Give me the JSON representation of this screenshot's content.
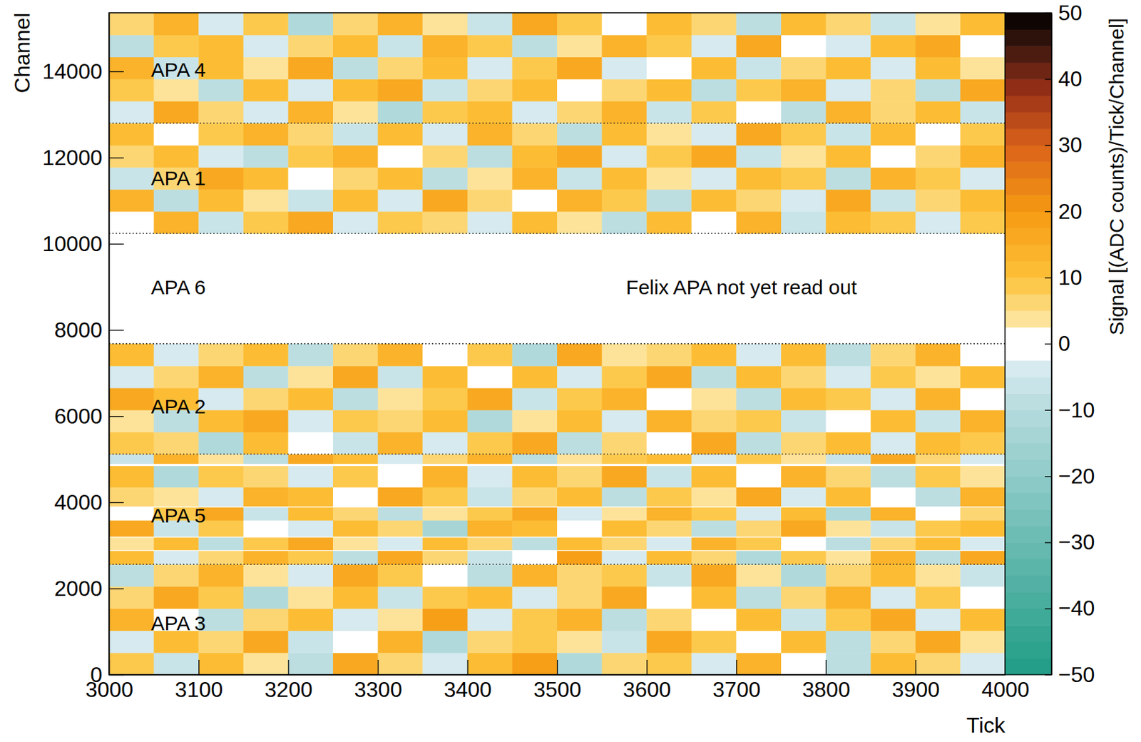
{
  "chart_data": {
    "type": "heatmap",
    "x_label": "Tick",
    "y_label": "Channel",
    "xlim": [
      3000,
      4000
    ],
    "ylim": [
      0,
      15360
    ],
    "xticks": [
      3000,
      3100,
      3200,
      3300,
      3400,
      3500,
      3600,
      3700,
      3800,
      3900,
      4000
    ],
    "yticks": [
      0,
      2000,
      4000,
      6000,
      8000,
      10000,
      12000,
      14000
    ],
    "grid": false,
    "x_edges": [
      3000,
      3050,
      3100,
      3150,
      3200,
      3250,
      3300,
      3350,
      3400,
      3450,
      3500,
      3550,
      3600,
      3650,
      3700,
      3750,
      3800,
      3850,
      3900,
      3950,
      4000
    ],
    "y_edges": [
      0,
      512,
      1024,
      1536,
      2048,
      2560,
      2880,
      2896,
      3190,
      3210,
      3584,
      3890,
      3910,
      4352,
      4850,
      4900,
      5120,
      5632,
      6144,
      6656,
      7168,
      7680,
      10240,
      10752,
      11264,
      11776,
      12288,
      12800,
      13312,
      13824,
      14336,
      14848,
      15360
    ],
    "cells": [
      [
        8,
        -6,
        12,
        3,
        -9,
        15,
        6,
        -3,
        10,
        18,
        -12,
        5,
        9,
        -4,
        14,
        2,
        -8,
        11,
        7,
        -5
      ],
      [
        -4,
        10,
        5,
        16,
        -7,
        2,
        13,
        -11,
        6,
        9,
        4,
        -6,
        17,
        8,
        -2,
        12,
        -9,
        5,
        15,
        3
      ],
      [
        13,
        2,
        -8,
        7,
        11,
        -5,
        4,
        19,
        -3,
        8,
        14,
        -10,
        6,
        1,
        10,
        -7,
        9,
        16,
        -4,
        12
      ],
      [
        5,
        15,
        9,
        -12,
        3,
        10,
        -6,
        8,
        12,
        -4,
        7,
        16,
        -2,
        11,
        -8,
        6,
        14,
        -5,
        9,
        1
      ],
      [
        -9,
        7,
        14,
        4,
        -3,
        17,
        9,
        2,
        -10,
        13,
        5,
        8,
        -7,
        15,
        4,
        -11,
        7,
        10,
        3,
        -6
      ],
      [
        11,
        -3,
        6,
        13,
        8,
        -9,
        15,
        5,
        -6,
        2,
        18,
        -4,
        10,
        7,
        -12,
        9,
        3,
        13,
        -8,
        16
      ],
      [
        0,
        0,
        0,
        0,
        0,
        0,
        0,
        0,
        0,
        0,
        0,
        0,
        0,
        0,
        0,
        0,
        0,
        0,
        0,
        0
      ],
      [
        3,
        12,
        -10,
        9,
        16,
        4,
        -5,
        11,
        7,
        -8,
        10,
        6,
        -3,
        14,
        9,
        2,
        -9,
        6,
        12,
        -4
      ],
      [
        0,
        0,
        0,
        0,
        0,
        0,
        0,
        0,
        0,
        0,
        0,
        0,
        0,
        0,
        0,
        0,
        0,
        0,
        0,
        0
      ],
      [
        16,
        -7,
        8,
        2,
        -4,
        12,
        7,
        -13,
        14,
        10,
        -2,
        11,
        5,
        -9,
        6,
        15,
        4,
        -6,
        8,
        10
      ],
      [
        -2,
        9,
        15,
        -6,
        11,
        6,
        -8,
        4,
        9,
        17,
        -5,
        3,
        13,
        8,
        -3,
        10,
        -11,
        14,
        2,
        7
      ],
      [
        0,
        0,
        0,
        0,
        0,
        0,
        0,
        0,
        0,
        0,
        0,
        0,
        0,
        0,
        0,
        0,
        0,
        0,
        0,
        0
      ],
      [
        7,
        4,
        -5,
        13,
        10,
        -2,
        16,
        9,
        -7,
        5,
        12,
        -9,
        8,
        3,
        16,
        -5,
        10,
        1,
        -8,
        14
      ],
      [
        12,
        -11,
        9,
        6,
        -3,
        8,
        2,
        14,
        -4,
        11,
        7,
        15,
        -6,
        10,
        -2,
        13,
        6,
        -10,
        9,
        4
      ],
      [
        0,
        0,
        0,
        0,
        0,
        0,
        0,
        0,
        0,
        0,
        0,
        0,
        0,
        0,
        0,
        0,
        0,
        0,
        0,
        0
      ],
      [
        -6,
        14,
        3,
        -8,
        15,
        11,
        -4,
        6,
        13,
        -9,
        4,
        9,
        12,
        -5,
        8,
        3,
        -7,
        16,
        5,
        -3
      ],
      [
        9,
        5,
        -12,
        10,
        2,
        -6,
        13,
        -3,
        8,
        15,
        -8,
        6,
        1,
        17,
        -10,
        7,
        12,
        -4,
        11,
        8
      ],
      [
        4,
        -8,
        11,
        15,
        -5,
        9,
        6,
        12,
        -11,
        3,
        10,
        -4,
        14,
        6,
        9,
        -7,
        2,
        10,
        -6,
        13
      ],
      [
        15,
        10,
        -3,
        6,
        12,
        -10,
        3,
        8,
        16,
        -6,
        9,
        13,
        -2,
        4,
        -9,
        11,
        8,
        -5,
        14,
        -1
      ],
      [
        -5,
        7,
        13,
        -9,
        4,
        16,
        -7,
        10,
        2,
        12,
        -3,
        8,
        15,
        -8,
        11,
        5,
        -4,
        9,
        3,
        12
      ],
      [
        10,
        -4,
        6,
        11,
        -8,
        5,
        14,
        -2,
        9,
        -12,
        16,
        3,
        7,
        12,
        -5,
        10,
        -9,
        6,
        13,
        2
      ],
      [
        null,
        null,
        null,
        null,
        null,
        null,
        null,
        null,
        null,
        null,
        null,
        null,
        null,
        null,
        null,
        null,
        null,
        null,
        null,
        null
      ],
      [
        2,
        13,
        -7,
        8,
        17,
        -3,
        9,
        6,
        -5,
        11,
        4,
        -10,
        10,
        2,
        14,
        -6,
        12,
        8,
        -3,
        9
      ],
      [
        14,
        -9,
        10,
        3,
        -6,
        12,
        -4,
        15,
        7,
        -2,
        13,
        9,
        -8,
        11,
        6,
        -3,
        16,
        -7,
        5,
        11
      ],
      [
        -7,
        6,
        15,
        12,
        -2,
        7,
        10,
        -9,
        4,
        14,
        -6,
        11,
        3,
        -4,
        12,
        8,
        -10,
        13,
        9,
        -5
      ],
      [
        6,
        11,
        -4,
        -10,
        9,
        14,
        2,
        7,
        -8,
        10,
        15,
        -3,
        9,
        16,
        -6,
        4,
        11,
        -2,
        7,
        13
      ],
      [
        11,
        -2,
        8,
        14,
        5,
        -7,
        12,
        -5,
        13,
        6,
        -9,
        10,
        4,
        -3,
        15,
        9,
        -6,
        12,
        -1,
        8
      ],
      [
        -3,
        15,
        6,
        -5,
        13,
        3,
        -11,
        9,
        11,
        -4,
        7,
        14,
        -7,
        8,
        2,
        -9,
        13,
        6,
        10,
        -6
      ],
      [
        8,
        3,
        -9,
        11,
        -4,
        10,
        16,
        -6,
        5,
        12,
        -2,
        6,
        11,
        -8,
        9,
        14,
        -3,
        7,
        -10,
        15
      ],
      [
        13,
        -6,
        10,
        4,
        15,
        -8,
        5,
        12,
        -3,
        9,
        17,
        -5,
        2,
        10,
        -7,
        6,
        12,
        -4,
        11,
        3
      ],
      [
        -8,
        9,
        12,
        -3,
        7,
        11,
        -6,
        14,
        8,
        -10,
        3,
        13,
        9,
        -4,
        16,
        1,
        -5,
        10,
        15,
        -2
      ],
      [
        5,
        14,
        -5,
        9,
        -11,
        6,
        13,
        3,
        -7,
        15,
        8,
        -2,
        12,
        5,
        -9,
        11,
        7,
        -6,
        4,
        10
      ]
    ],
    "apa_boundaries": [
      2560,
      5120,
      7680,
      10240,
      12800
    ],
    "colorbar": {
      "label": "Signal [(ADC counts)/Tick/Channel]",
      "range": [
        -50,
        50
      ],
      "ticks": [
        {
          "value": -50,
          "label": "−50"
        },
        {
          "value": -40,
          "label": "−40"
        },
        {
          "value": -30,
          "label": "−30"
        },
        {
          "value": -20,
          "label": "−20"
        },
        {
          "value": -10,
          "label": "−10"
        },
        0,
        10,
        20,
        30,
        40,
        50
      ]
    },
    "annotations": [
      {
        "text": "APA 4",
        "x": 3047,
        "y": 14000
      },
      {
        "text": "APA 1",
        "x": 3047,
        "y": 11480
      },
      {
        "text": "APA 6",
        "x": 3047,
        "y": 8960
      },
      {
        "text": "Felix APA not yet read out",
        "x": 3577,
        "y": 8960
      },
      {
        "text": "APA 2",
        "x": 3047,
        "y": 6180
      },
      {
        "text": "APA 5",
        "x": 3047,
        "y": 3660
      },
      {
        "text": "APA 3",
        "x": 3047,
        "y": 1150
      }
    ]
  }
}
